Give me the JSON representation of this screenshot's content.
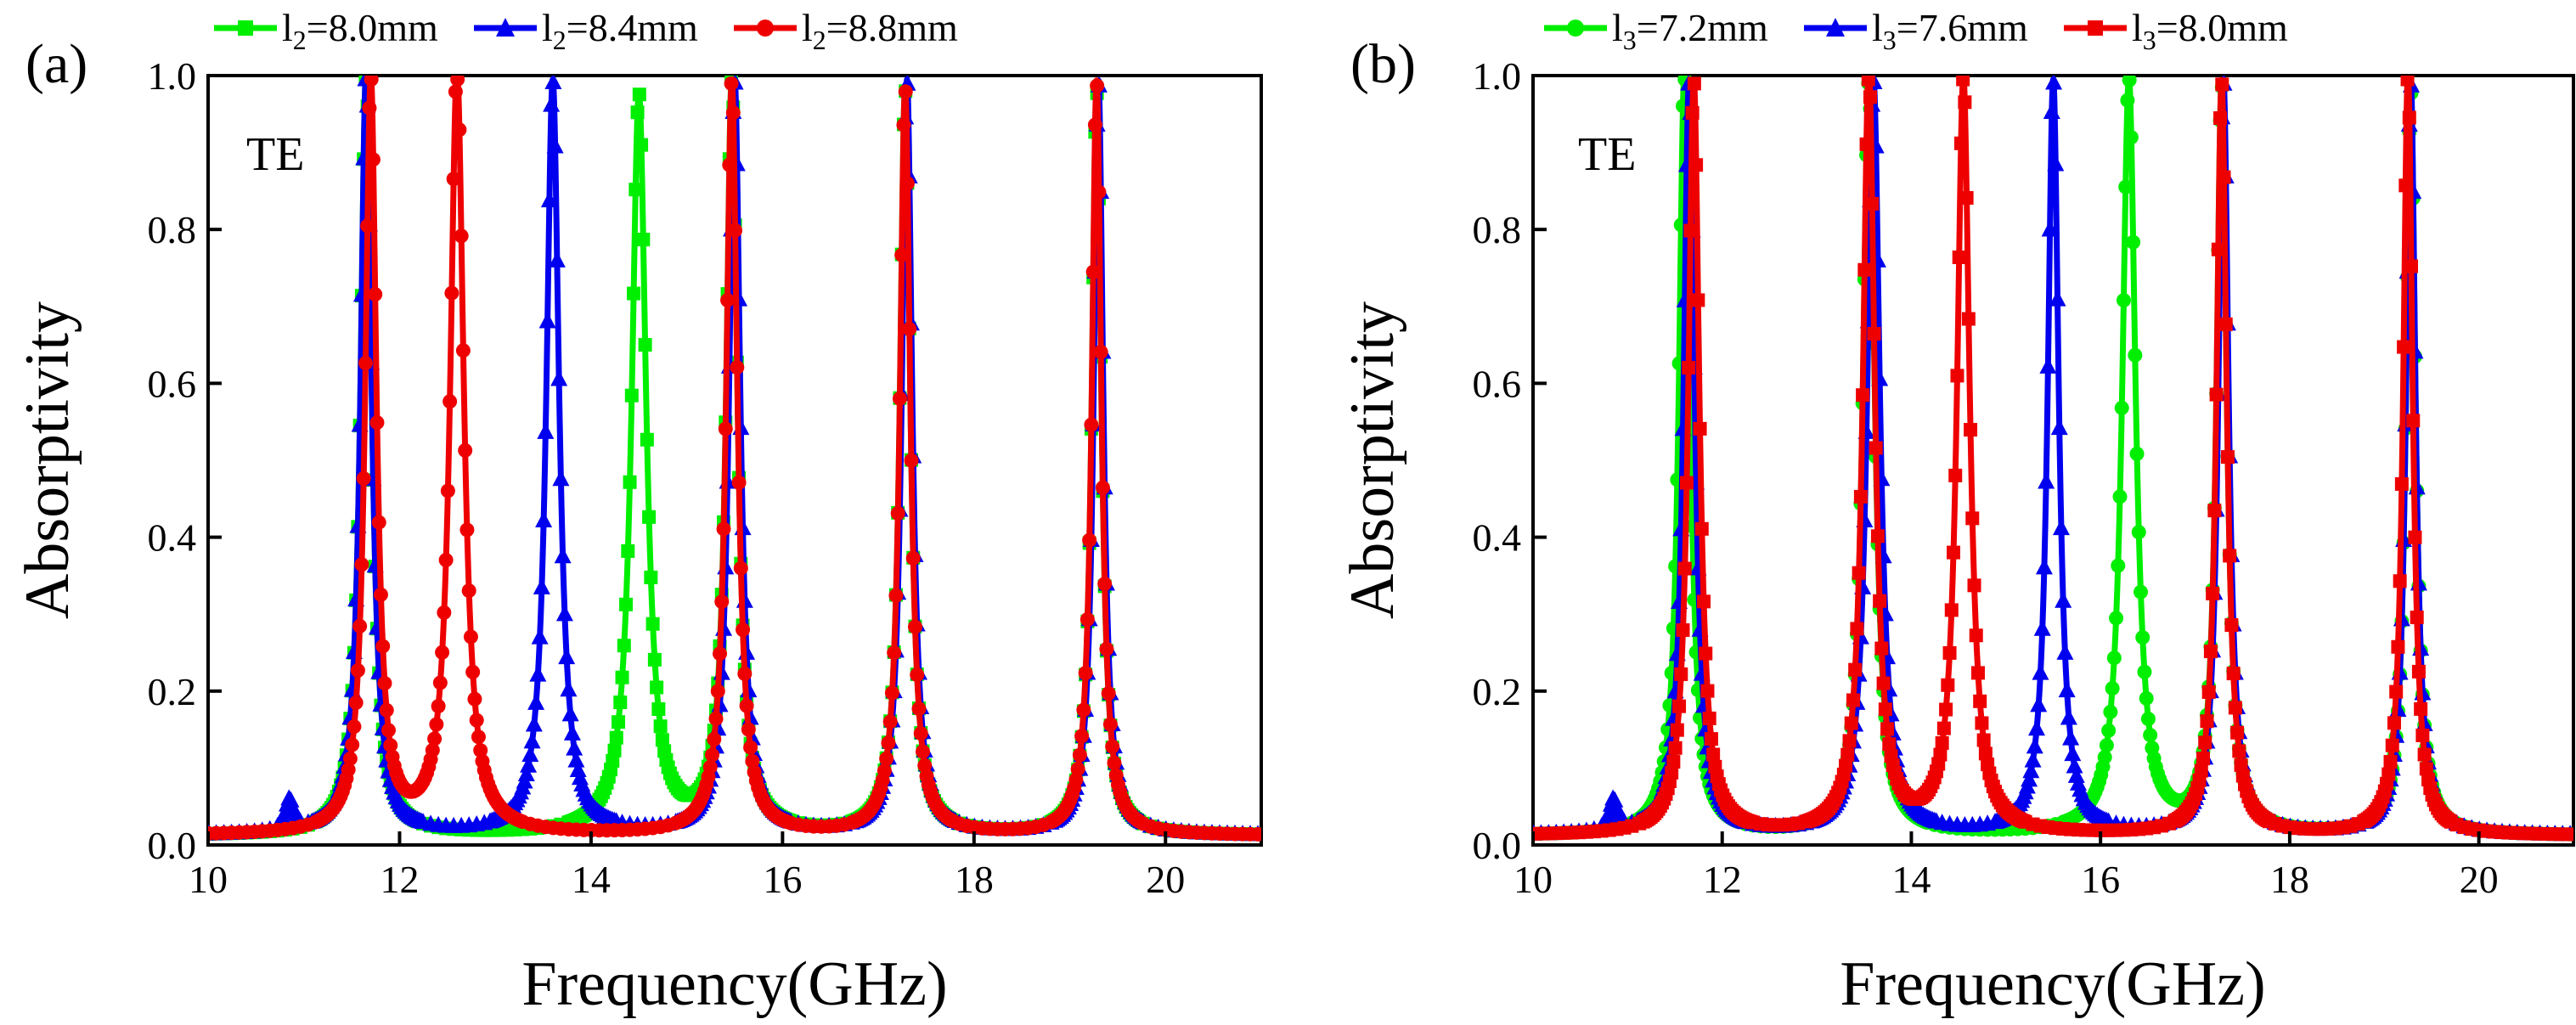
{
  "chart_data": [
    {
      "type": "line",
      "panel_label": "(a)",
      "annotation": "TE",
      "xlabel": "Frequency(GHz)",
      "ylabel": "Absorptivity",
      "xlim": [
        10,
        21
      ],
      "ylim": [
        0,
        1
      ],
      "xticks": [
        "10",
        "12",
        "14",
        "16",
        "18",
        "20"
      ],
      "yticks": [
        "0.0",
        "0.2",
        "0.4",
        "0.6",
        "0.8",
        "1.0"
      ],
      "xtick_values": [
        10,
        12,
        14,
        16,
        18,
        20
      ],
      "ytick_values": [
        0,
        0.2,
        0.4,
        0.6,
        0.8,
        1.0
      ],
      "legend_position": "top, outside plot",
      "series": [
        {
          "name": "l2=8.0mm",
          "legend_base": "l",
          "legend_sub": "2",
          "legend_rest": "=8.0mm",
          "color": "#00ee00",
          "marker": "square",
          "peaks": [
            {
              "center": 11.65,
              "height": 0.99,
              "width": 0.07
            },
            {
              "center": 14.5,
              "height": 0.96,
              "width": 0.09
            },
            {
              "center": 15.47,
              "height": 0.98,
              "width": 0.07
            },
            {
              "center": 17.28,
              "height": 0.97,
              "width": 0.065
            },
            {
              "center": 19.28,
              "height": 0.97,
              "width": 0.06
            }
          ]
        },
        {
          "name": "l2=8.4mm",
          "legend_base": "l",
          "legend_sub": "2",
          "legend_rest": "=8.4mm",
          "color": "#0000ee",
          "marker": "triangle",
          "peaks": [
            {
              "center": 10.85,
              "height": 0.04,
              "width": 0.05
            },
            {
              "center": 11.65,
              "height": 0.99,
              "width": 0.07
            },
            {
              "center": 13.6,
              "height": 0.98,
              "width": 0.08
            },
            {
              "center": 15.5,
              "height": 0.98,
              "width": 0.07
            },
            {
              "center": 17.3,
              "height": 0.98,
              "width": 0.065
            },
            {
              "center": 19.3,
              "height": 0.98,
              "width": 0.06
            }
          ]
        },
        {
          "name": "l2=8.8mm",
          "legend_base": "l",
          "legend_sub": "2",
          "legend_rest": "=8.8mm",
          "color": "#ee0000",
          "marker": "circle",
          "peaks": [
            {
              "center": 11.7,
              "height": 0.98,
              "width": 0.07
            },
            {
              "center": 12.6,
              "height": 0.99,
              "width": 0.085
            },
            {
              "center": 15.47,
              "height": 0.98,
              "width": 0.07
            },
            {
              "center": 17.28,
              "height": 0.97,
              "width": 0.065
            },
            {
              "center": 19.28,
              "height": 0.98,
              "width": 0.06
            }
          ]
        }
      ]
    },
    {
      "type": "line",
      "panel_label": "(b)",
      "annotation": "TE",
      "xlabel": "Frequency(GHz)",
      "ylabel": "Absorptivity",
      "xlim": [
        10,
        21
      ],
      "ylim": [
        0,
        1
      ],
      "xticks": [
        "10",
        "12",
        "14",
        "16",
        "18",
        "20"
      ],
      "yticks": [
        "0.0",
        "0.2",
        "0.4",
        "0.6",
        "0.8",
        "1.0"
      ],
      "xtick_values": [
        10,
        12,
        14,
        16,
        18,
        20
      ],
      "ytick_values": [
        0,
        0.2,
        0.4,
        0.6,
        0.8,
        1.0
      ],
      "legend_position": "top, outside plot",
      "series": [
        {
          "name": "l3=7.2mm",
          "legend_base": "l",
          "legend_sub": "3",
          "legend_rest": "=7.2mm",
          "color": "#00ee00",
          "marker": "circle",
          "peaks": [
            {
              "center": 11.6,
              "height": 0.99,
              "width": 0.07
            },
            {
              "center": 13.55,
              "height": 0.98,
              "width": 0.075
            },
            {
              "center": 16.3,
              "height": 0.98,
              "width": 0.085
            },
            {
              "center": 17.28,
              "height": 0.97,
              "width": 0.065
            },
            {
              "center": 19.28,
              "height": 0.97,
              "width": 0.06
            }
          ]
        },
        {
          "name": "l3=7.6mm",
          "legend_base": "l",
          "legend_sub": "3",
          "legend_rest": "=7.6mm",
          "color": "#0000ee",
          "marker": "triangle",
          "peaks": [
            {
              "center": 10.85,
              "height": 0.04,
              "width": 0.05
            },
            {
              "center": 11.65,
              "height": 0.98,
              "width": 0.07
            },
            {
              "center": 13.6,
              "height": 0.98,
              "width": 0.08
            },
            {
              "center": 15.5,
              "height": 0.98,
              "width": 0.07
            },
            {
              "center": 17.3,
              "height": 0.98,
              "width": 0.065
            },
            {
              "center": 19.28,
              "height": 0.98,
              "width": 0.06
            }
          ]
        },
        {
          "name": "l3=8.0mm",
          "legend_base": "l",
          "legend_sub": "3",
          "legend_rest": "=8.0mm",
          "color": "#ee0000",
          "marker": "square",
          "peaks": [
            {
              "center": 11.7,
              "height": 0.98,
              "width": 0.07
            },
            {
              "center": 13.55,
              "height": 0.99,
              "width": 0.075
            },
            {
              "center": 14.55,
              "height": 0.98,
              "width": 0.08
            },
            {
              "center": 17.28,
              "height": 0.98,
              "width": 0.065
            },
            {
              "center": 19.25,
              "height": 0.99,
              "width": 0.06
            }
          ]
        }
      ]
    }
  ]
}
